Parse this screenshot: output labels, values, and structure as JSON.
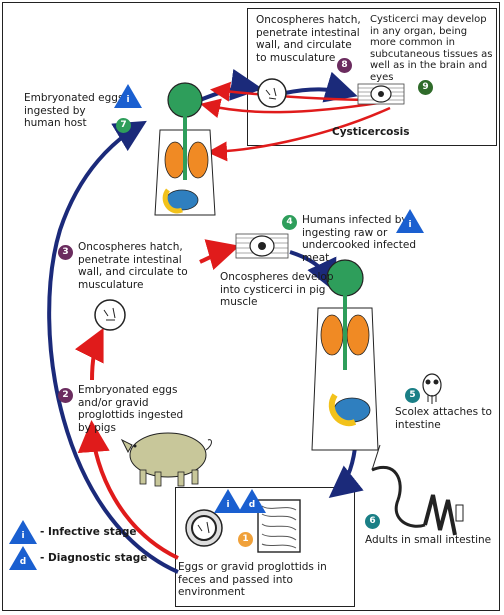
{
  "colors": {
    "step_purple": "#6b2c5f",
    "step_green": "#2e9e5b",
    "step_dark_green": "#2f6b2a",
    "step_teal": "#1a7f86",
    "step_orange": "#f0a13a",
    "arrow_blue": "#1b2a7a",
    "arrow_red": "#e01b1b",
    "badge_blue": "#1a5fd0"
  },
  "steps": {
    "s1": {
      "num": "1",
      "text": "Eggs or gravid proglottids in feces and passed into environment"
    },
    "s2": {
      "num": "2",
      "text": "Embryonated eggs and/or gravid proglottids ingested by pigs"
    },
    "s3": {
      "num": "3",
      "text": "Oncospheres hatch, penetrate intestinal wall, and circulate to musculature"
    },
    "s4": {
      "num": "4",
      "text": "Humans infected by ingesting raw or undercooked infected meat"
    },
    "s4b": {
      "text": "Oncospheres develop into cysticerci in pig muscle"
    },
    "s5": {
      "num": "5",
      "text": "Scolex attaches to intestine"
    },
    "s6": {
      "num": "6",
      "text": "Adults in small intestine"
    },
    "s7": {
      "num": "7",
      "text": "Embryonated eggs ingested by human host"
    },
    "s8": {
      "num": "8",
      "text": "Oncospheres hatch, penetrate intestinal wall, and circulate to musculature"
    },
    "s9": {
      "num": "9",
      "text": "Cysticerci may develop in any organ, being more common in subcutaneous tissues as well as in the brain and eyes"
    }
  },
  "cysticercosis_label": "Cysticercosis",
  "badges": {
    "infective": "i",
    "diagnostic": "d"
  },
  "legend": {
    "infective_label": "- Infective stage",
    "diagnostic_label": "- Diagnostic stage"
  }
}
